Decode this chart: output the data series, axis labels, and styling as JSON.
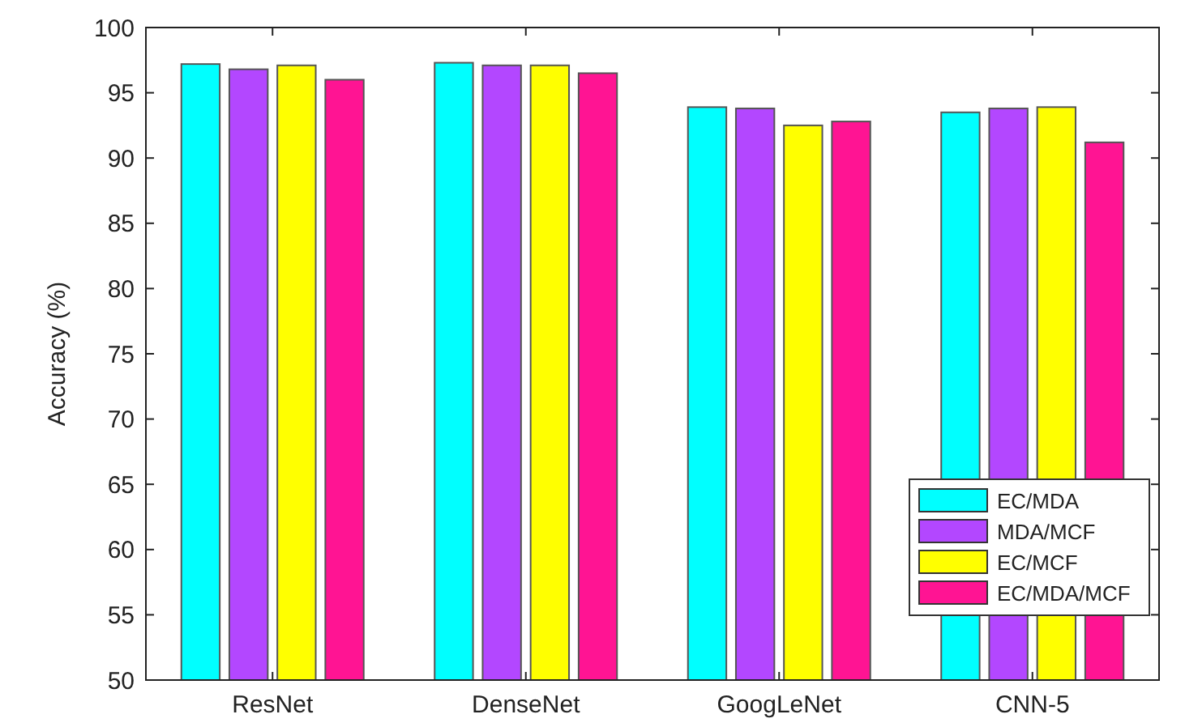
{
  "chart_data": {
    "type": "bar",
    "ylabel": "Accuracy (%)",
    "categories": [
      "ResNet",
      "DenseNet",
      "GoogLeNet",
      "CNN-5"
    ],
    "series": [
      {
        "name": "EC/MDA",
        "color": "#00ffff",
        "values": [
          97.2,
          97.3,
          93.9,
          93.5
        ]
      },
      {
        "name": "MDA/MCF",
        "color": "#b347ff",
        "values": [
          96.8,
          97.1,
          93.8,
          93.8
        ]
      },
      {
        "name": "EC/MCF",
        "color": "#ffff00",
        "values": [
          97.1,
          97.1,
          92.5,
          93.9
        ]
      },
      {
        "name": "EC/MDA/MCF",
        "color": "#ff1493",
        "values": [
          96.0,
          96.5,
          92.8,
          91.2
        ]
      }
    ],
    "ylim": [
      50,
      100
    ],
    "yticks": [
      50,
      55,
      60,
      65,
      70,
      75,
      80,
      85,
      90,
      95,
      100
    ],
    "grid": false,
    "legend": "bottom right"
  }
}
